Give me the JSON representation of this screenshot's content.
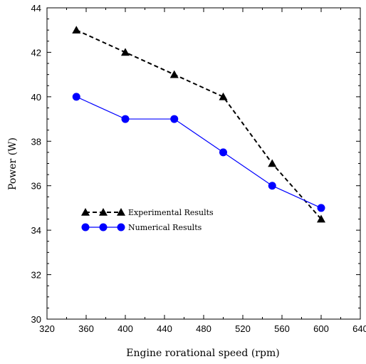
{
  "chart_data": {
    "type": "line",
    "xlabel": "Engine rorational speed (rpm)",
    "ylabel": "Power (W)",
    "xlim": [
      320,
      640
    ],
    "ylim": [
      30,
      44
    ],
    "xticks": [
      320,
      360,
      400,
      440,
      480,
      520,
      560,
      600,
      640
    ],
    "yticks": [
      30,
      32,
      34,
      36,
      38,
      40,
      42,
      44
    ],
    "grid": false,
    "legend_position": "lower-left",
    "series": [
      {
        "name": "Experimental Results",
        "color": "#000000",
        "line_style": "dashed",
        "marker": "triangle",
        "x": [
          350,
          400,
          450,
          500,
          550,
          600
        ],
        "y": [
          43,
          42,
          41,
          40,
          37,
          34.5
        ]
      },
      {
        "name": "Numerical Results",
        "color": "#0000ff",
        "line_style": "solid",
        "marker": "circle",
        "x": [
          350,
          400,
          450,
          500,
          550,
          600
        ],
        "y": [
          40,
          39,
          39,
          37.5,
          36,
          35
        ]
      }
    ]
  }
}
